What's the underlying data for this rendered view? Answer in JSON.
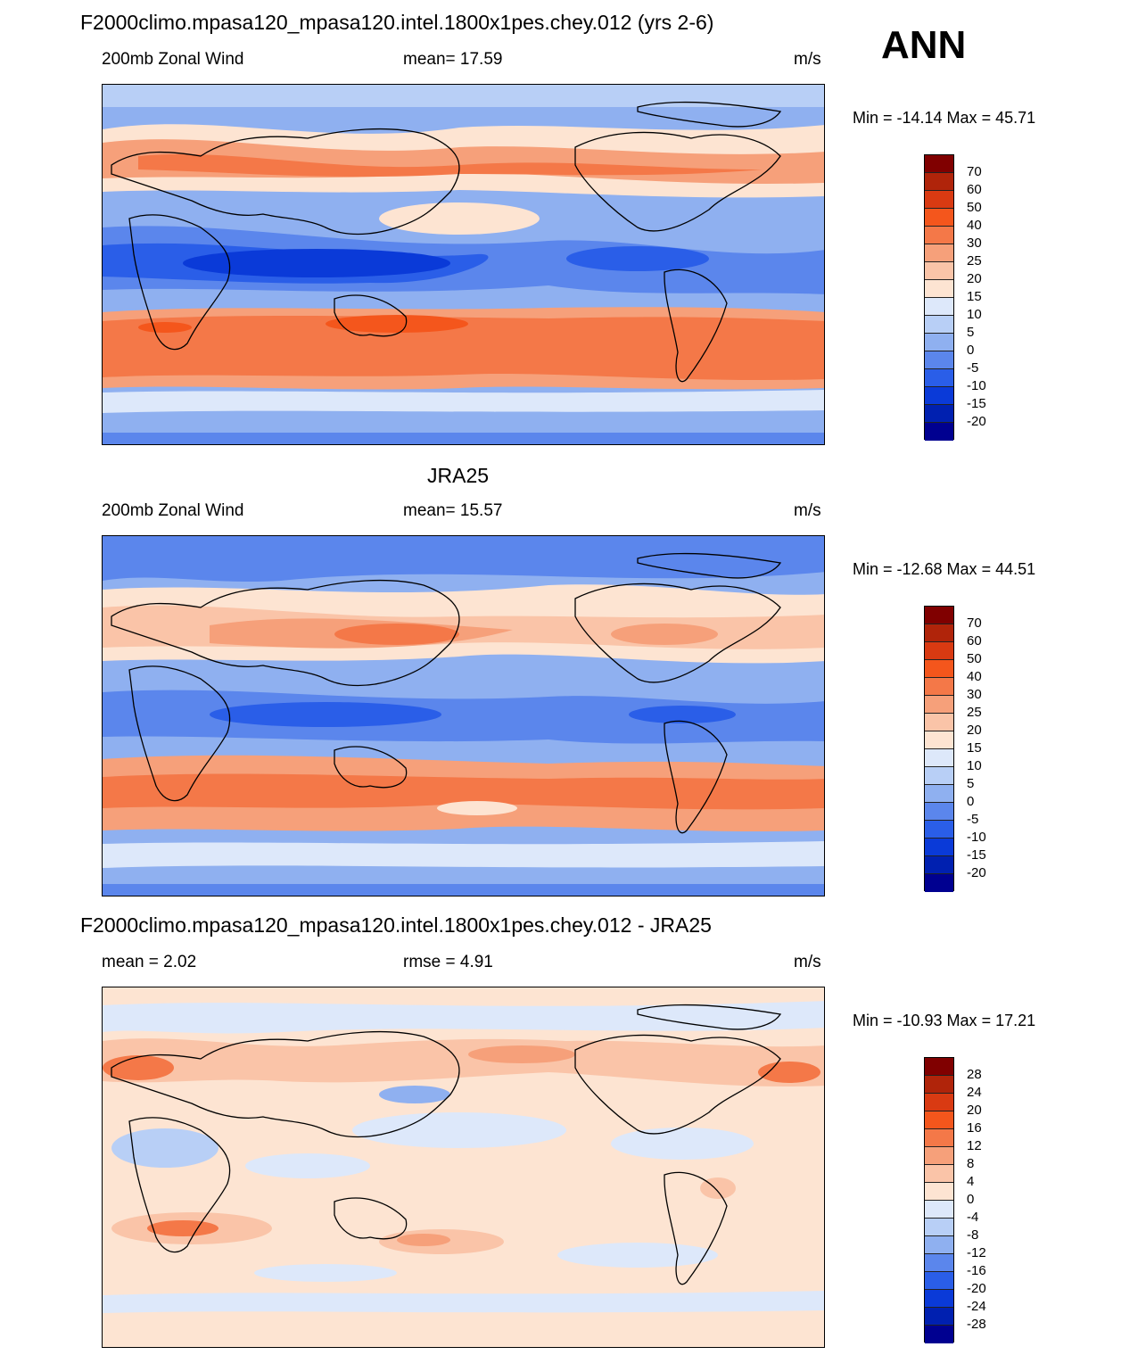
{
  "season": "ANN",
  "panels": [
    {
      "title": "F2000climo.mpasa120_mpasa120.intel.1800x1pes.chey.012 (yrs 2-6)",
      "left_label": "200mb Zonal Wind",
      "center_label": "mean=  17.59",
      "units": "m/s",
      "minmax": "Min = -14.14 Max =  45.71",
      "colorbar_labels": [
        "70",
        "60",
        "50",
        "40",
        "30",
        "25",
        "20",
        "15",
        "10",
        "5",
        "0",
        "-5",
        "-10",
        "-15",
        "-20"
      ]
    },
    {
      "title": "JRA25",
      "left_label": "200mb Zonal Wind",
      "center_label": "mean=  15.57",
      "units": "m/s",
      "minmax": "Min = -12.68 Max =  44.51",
      "colorbar_labels": [
        "70",
        "60",
        "50",
        "40",
        "30",
        "25",
        "20",
        "15",
        "10",
        "5",
        "0",
        "-5",
        "-10",
        "-15",
        "-20"
      ]
    },
    {
      "title": "F2000climo.mpasa120_mpasa120.intel.1800x1pes.chey.012 - JRA25",
      "left_label": "mean =   2.02",
      "center_label": "rmse =   4.91",
      "units": "m/s",
      "minmax": "Min = -10.93 Max =  17.21",
      "colorbar_labels": [
        "28",
        "24",
        "20",
        "16",
        "12",
        "8",
        "4",
        "0",
        "-4",
        "-8",
        "-12",
        "-16",
        "-20",
        "-24",
        "-28"
      ]
    }
  ],
  "colors": {
    "scale": [
      "#800000",
      "#b0240a",
      "#d93a12",
      "#f4561c",
      "#f47848",
      "#f6a07a",
      "#fac4a8",
      "#fde4d2",
      "#dde8fa",
      "#b8cff6",
      "#8fb0f0",
      "#5b86ec",
      "#2a5ee8",
      "#0a3ad8",
      "#0020b0",
      "#000090"
    ]
  }
}
